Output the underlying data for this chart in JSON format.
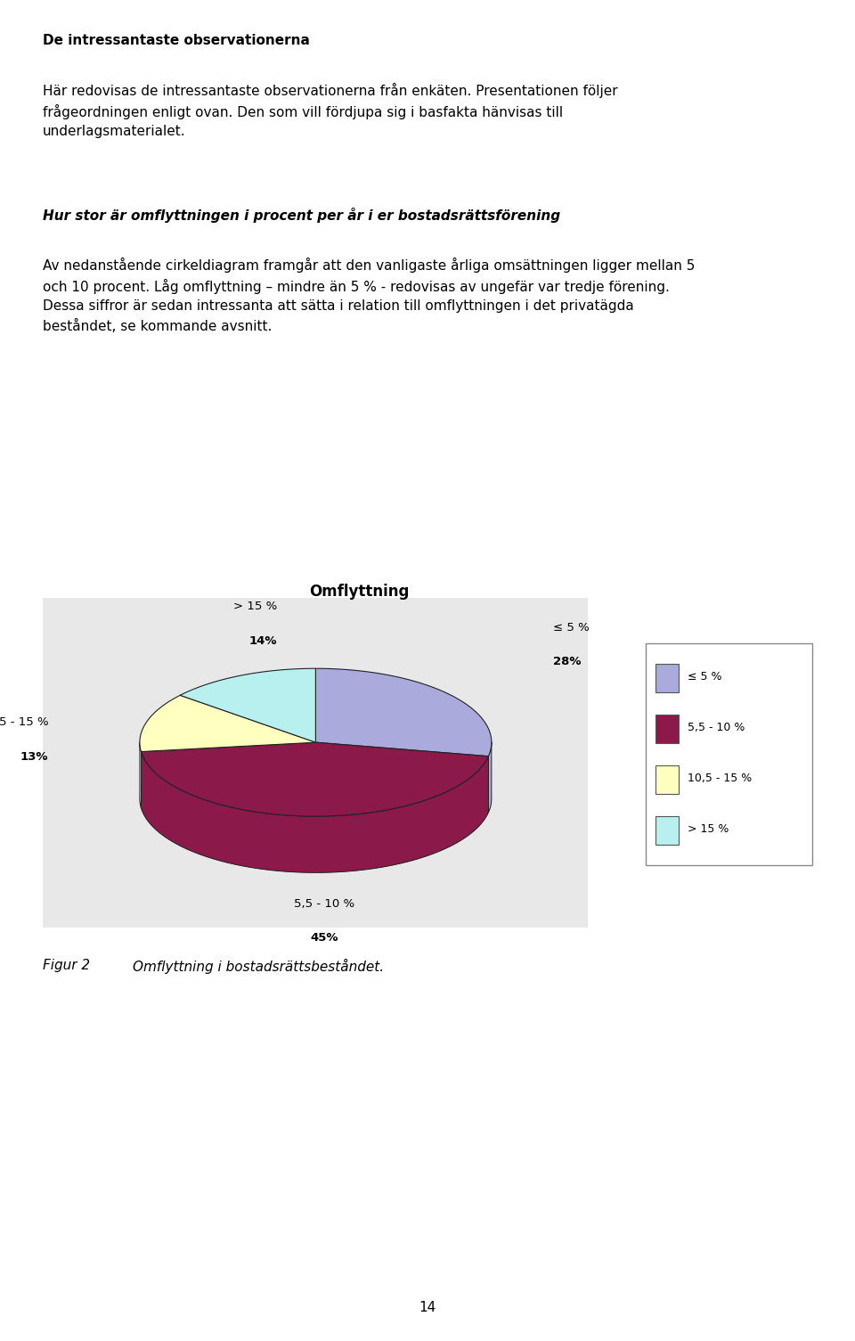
{
  "title": "Omflyttning",
  "slices": [
    28,
    45,
    13,
    14
  ],
  "labels": [
    "≤ 5 %",
    "5,5 - 10 %",
    "10,5 - 15 %",
    "> 15 %"
  ],
  "colors": [
    "#aaaadd",
    "#8b1a4a",
    "#ffffc0",
    "#b8f0f0"
  ],
  "pct_labels": [
    "28%",
    "45%",
    "13%",
    "14%"
  ],
  "legend_labels": [
    "≤ 5 %",
    "5,5 - 10 %",
    "10,5 - 15 %",
    "> 15 %"
  ],
  "legend_colors": [
    "#aaaadd",
    "#8b1a4a",
    "#ffffc0",
    "#b8f0f0"
  ],
  "figure_caption_label": "Figur 2",
  "figure_caption_text": "Omflyttning i bostadsrättsbeståndet.",
  "page_number": "14",
  "text_blocks": [
    {
      "text": "De intressantaste observationerna",
      "bold": true,
      "size": 11,
      "space_after": true
    },
    {
      "text": "Här redovisas de intressantaste observationerna från enkäten. Presentationen följer\nfrågeordningen enligt ovan. Den som vill fördjupa sig i basfakta hänvisas till\nunderlagsmaterialet.",
      "bold": false,
      "size": 11,
      "space_after": true
    },
    {
      "text": "Hur stor är omflyttningen i procent per år i er bostadsrättsförening",
      "bold": true,
      "italic": true,
      "size": 11,
      "space_after": false
    },
    {
      "text": "Av nedanstående cirkeldiagram framgår att den vanligaste årliga omsättningen ligger mellan 5\noch 10 procent. Låg omflyttning – mindre än 5 % - redovisas av ungefär var tredje förening.\nDessa siffror är sedan intressanta att sätta i relation till omflyttningen i det privatägda\nbeståndet, se kommande avsnitt.",
      "bold": false,
      "size": 11,
      "space_after": false
    }
  ]
}
